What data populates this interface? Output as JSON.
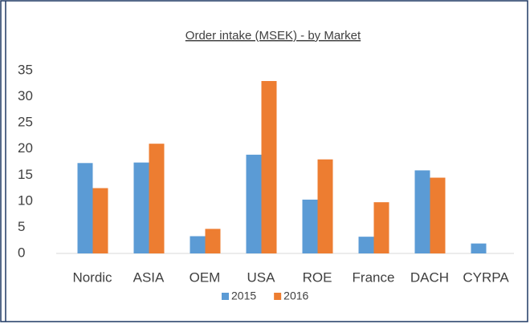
{
  "chart_data": {
    "type": "bar",
    "title": "Order intake (MSEK) - by Market",
    "categories": [
      "Nordic",
      "ASIA",
      "OEM",
      "USA",
      "ROE",
      "France",
      "DACH",
      "CYRPA"
    ],
    "series": [
      {
        "name": "2015",
        "color": "#5b9bd5",
        "values": [
          17.3,
          17.4,
          3.3,
          18.9,
          10.3,
          3.2,
          15.9,
          1.9
        ]
      },
      {
        "name": "2016",
        "color": "#ed7d31",
        "values": [
          12.5,
          21,
          4.7,
          33,
          18,
          9.8,
          14.5,
          null
        ]
      }
    ],
    "ylim": [
      0,
      35
    ],
    "yticks": [
      0,
      5,
      10,
      15,
      20,
      25,
      30,
      35
    ],
    "grid": false,
    "legend": "bottom"
  }
}
